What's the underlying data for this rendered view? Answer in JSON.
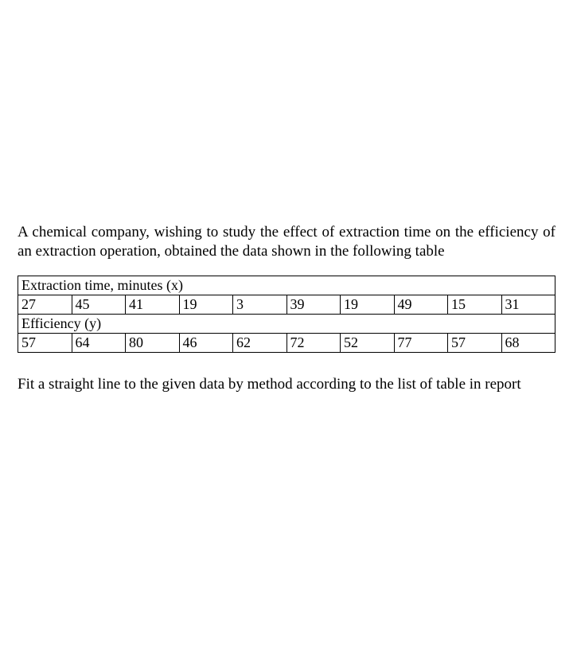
{
  "page": {
    "intro": "A chemical company, wishing to study the effect of extraction time on the efficiency of an extraction operation, obtained the data shown in the following table",
    "instruction": "Fit a straight line to the given data by method according to the list of table in report"
  },
  "table": {
    "type": "table",
    "background_color": "#ffffff",
    "border_color": "#000000",
    "text_color": "#000000",
    "font_family": "Times New Roman",
    "font_size": 18,
    "header_x": "Extraction time, minutes (x)",
    "header_y": "Efficiency (y)",
    "columns": 10,
    "x_values": [
      "27",
      "45",
      "41",
      "19",
      "3",
      "39",
      "19",
      "49",
      "15",
      "31"
    ],
    "y_values": [
      "57",
      "64",
      "80",
      "46",
      "62",
      "72",
      "52",
      "77",
      "57",
      "68"
    ]
  }
}
